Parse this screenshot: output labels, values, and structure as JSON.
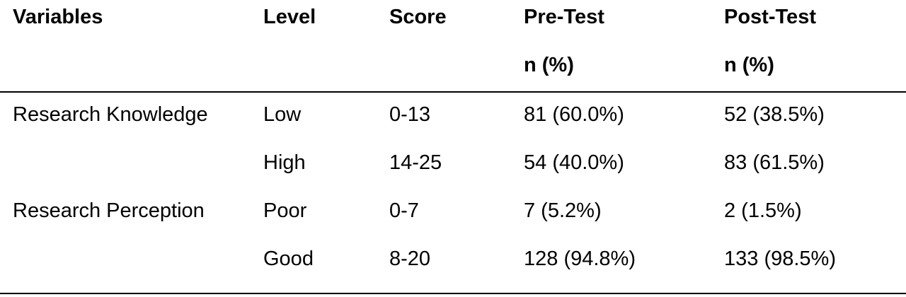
{
  "table": {
    "headers": {
      "variables": "Variables",
      "level": "Level",
      "score": "Score",
      "pre_test": "Pre-Test",
      "post_test": "Post-Test",
      "pre_sub": "n (%)",
      "post_sub": "n (%)"
    },
    "rows": [
      {
        "variable": "Research Knowledge",
        "level": "Low",
        "score": "0-13",
        "pre": "81 (60.0%)",
        "post": "52 (38.5%)"
      },
      {
        "variable": "",
        "level": "High",
        "score": "14-25",
        "pre": "54 (40.0%)",
        "post": "83 (61.5%)"
      },
      {
        "variable": "Research Perception",
        "level": "Poor",
        "score": "0-7",
        "pre": "7 (5.2%)",
        "post": "2 (1.5%)"
      },
      {
        "variable": "",
        "level": "Good",
        "score": "8-20",
        "pre": "128 (94.8%)",
        "post": "133 (98.5%)"
      }
    ]
  }
}
